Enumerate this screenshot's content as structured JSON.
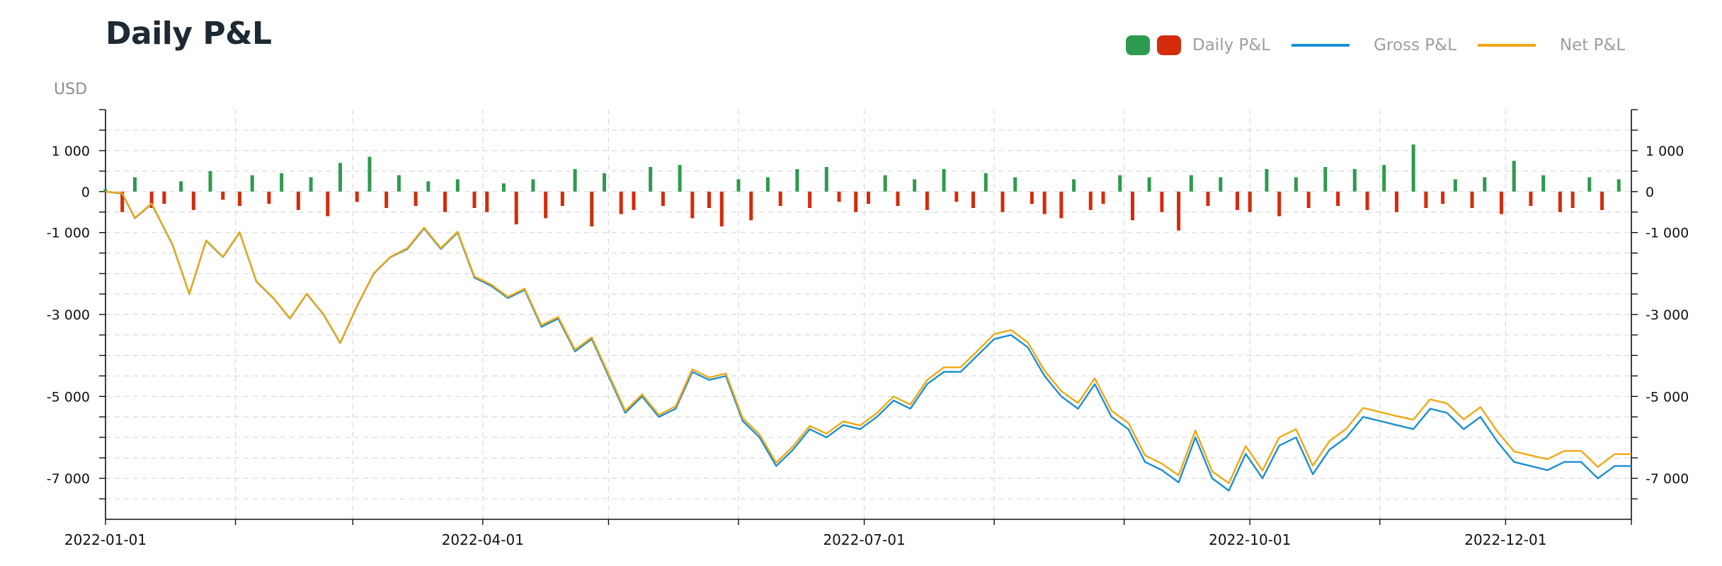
{
  "page": {
    "title": "Daily P&L"
  },
  "legend": [
    {
      "label": "Daily P&L",
      "colors": [
        "#2e9a4e",
        "#d42b0a"
      ]
    },
    {
      "label": "Gross P&L",
      "color": "#1a8fd1"
    },
    {
      "label": "Net P&L",
      "color": "#f0a813"
    }
  ],
  "chart_data": {
    "type": "bar+line",
    "title": "Daily P&L",
    "ylabel": "USD",
    "xlim": [
      "2022-01-01",
      "2022-12-31"
    ],
    "ylim": [
      -8000,
      2000
    ],
    "yticks": [
      1000,
      0,
      -1000,
      -3000,
      -5000,
      -7000
    ],
    "ytick_labels": [
      "1 000",
      "0",
      "-1 000",
      "-3 000",
      "-5 000",
      "-7 000"
    ],
    "xticks": [
      "2022-01-01",
      "2022-04-01",
      "2022-07-01",
      "2022-10-01",
      "2022-12-01"
    ],
    "grid": true,
    "legend_position": "top-right",
    "series": [
      {
        "name": "Daily P&L",
        "type": "bar",
        "positive_color": "#2e9a4e",
        "negative_color": "#d42b0a",
        "x": [
          "2022-01-01",
          "2022-01-05",
          "2022-01-08",
          "2022-01-12",
          "2022-01-15",
          "2022-01-19",
          "2022-01-22",
          "2022-01-26",
          "2022-01-29",
          "2022-02-02",
          "2022-02-05",
          "2022-02-09",
          "2022-02-12",
          "2022-02-16",
          "2022-02-19",
          "2022-02-23",
          "2022-02-26",
          "2022-03-02",
          "2022-03-05",
          "2022-03-09",
          "2022-03-12",
          "2022-03-16",
          "2022-03-19",
          "2022-03-23",
          "2022-03-26",
          "2022-03-30",
          "2022-04-02",
          "2022-04-06",
          "2022-04-09",
          "2022-04-13",
          "2022-04-16",
          "2022-04-20",
          "2022-04-23",
          "2022-04-27",
          "2022-04-30",
          "2022-05-04",
          "2022-05-07",
          "2022-05-11",
          "2022-05-14",
          "2022-05-18",
          "2022-05-21",
          "2022-05-25",
          "2022-05-28",
          "2022-06-01",
          "2022-06-04",
          "2022-06-08",
          "2022-06-11",
          "2022-06-15",
          "2022-06-18",
          "2022-06-22",
          "2022-06-25",
          "2022-06-29",
          "2022-07-02",
          "2022-07-06",
          "2022-07-09",
          "2022-07-13",
          "2022-07-16",
          "2022-07-20",
          "2022-07-23",
          "2022-07-27",
          "2022-07-30",
          "2022-08-03",
          "2022-08-06",
          "2022-08-10",
          "2022-08-13",
          "2022-08-17",
          "2022-08-20",
          "2022-08-24",
          "2022-08-27",
          "2022-08-31",
          "2022-09-03",
          "2022-09-07",
          "2022-09-10",
          "2022-09-14",
          "2022-09-17",
          "2022-09-21",
          "2022-09-24",
          "2022-09-28",
          "2022-10-01",
          "2022-10-05",
          "2022-10-08",
          "2022-10-12",
          "2022-10-15",
          "2022-10-19",
          "2022-10-22",
          "2022-10-26",
          "2022-10-29",
          "2022-11-02",
          "2022-11-05",
          "2022-11-09",
          "2022-11-12",
          "2022-11-16",
          "2022-11-19",
          "2022-11-23",
          "2022-11-26",
          "2022-11-30",
          "2022-12-03",
          "2022-12-07",
          "2022-12-10",
          "2022-12-14",
          "2022-12-17",
          "2022-12-21",
          "2022-12-24",
          "2022-12-28"
        ],
        "values": [
          60,
          -500,
          350,
          -400,
          -300,
          250,
          -450,
          500,
          -200,
          -350,
          400,
          -300,
          450,
          -450,
          350,
          -600,
          700,
          -250,
          850,
          -400,
          400,
          -350,
          250,
          -500,
          300,
          -400,
          -500,
          200,
          -800,
          300,
          -650,
          -350,
          550,
          -850,
          450,
          -550,
          -450,
          600,
          -350,
          650,
          -650,
          -400,
          -850,
          300,
          -700,
          350,
          -350,
          550,
          -400,
          600,
          -250,
          -500,
          -300,
          400,
          -350,
          300,
          -450,
          550,
          -250,
          -400,
          450,
          -500,
          350,
          -300,
          -550,
          -650,
          300,
          -450,
          -300,
          400,
          -700,
          350,
          -500,
          -950,
          400,
          -350,
          350,
          -450,
          -500,
          550,
          -600,
          350,
          -400,
          600,
          -350,
          550,
          -450,
          650,
          -500,
          1150,
          -400,
          -300,
          300,
          -400,
          350,
          -550,
          750,
          -350,
          400,
          -500,
          -400,
          350,
          -450,
          300
        ]
      },
      {
        "name": "Gross P&L",
        "type": "line",
        "color": "#1a8fd1",
        "x": [
          "2022-01-01",
          "2022-01-05",
          "2022-01-08",
          "2022-01-12",
          "2022-01-17",
          "2022-01-21",
          "2022-01-25",
          "2022-01-29",
          "2022-02-02",
          "2022-02-06",
          "2022-02-10",
          "2022-02-14",
          "2022-02-18",
          "2022-02-22",
          "2022-02-26",
          "2022-03-02",
          "2022-03-06",
          "2022-03-10",
          "2022-03-14",
          "2022-03-18",
          "2022-03-22",
          "2022-03-26",
          "2022-03-30",
          "2022-04-03",
          "2022-04-07",
          "2022-04-11",
          "2022-04-15",
          "2022-04-19",
          "2022-04-23",
          "2022-04-27",
          "2022-05-01",
          "2022-05-05",
          "2022-05-09",
          "2022-05-13",
          "2022-05-17",
          "2022-05-21",
          "2022-05-25",
          "2022-05-29",
          "2022-06-02",
          "2022-06-06",
          "2022-06-10",
          "2022-06-14",
          "2022-06-18",
          "2022-06-22",
          "2022-06-26",
          "2022-06-30",
          "2022-07-04",
          "2022-07-08",
          "2022-07-12",
          "2022-07-16",
          "2022-07-20",
          "2022-07-24",
          "2022-07-28",
          "2022-08-01",
          "2022-08-05",
          "2022-08-09",
          "2022-08-13",
          "2022-08-17",
          "2022-08-21",
          "2022-08-25",
          "2022-08-29",
          "2022-09-02",
          "2022-09-06",
          "2022-09-10",
          "2022-09-14",
          "2022-09-18",
          "2022-09-22",
          "2022-09-26",
          "2022-09-30",
          "2022-10-04",
          "2022-10-08",
          "2022-10-12",
          "2022-10-16",
          "2022-10-20",
          "2022-10-24",
          "2022-10-28",
          "2022-11-01",
          "2022-11-05",
          "2022-11-09",
          "2022-11-13",
          "2022-11-17",
          "2022-11-21",
          "2022-11-25",
          "2022-11-29",
          "2022-12-03",
          "2022-12-07",
          "2022-12-11",
          "2022-12-15",
          "2022-12-19",
          "2022-12-23",
          "2022-12-27",
          "2022-12-31"
        ],
        "values": [
          0,
          -50,
          -650,
          -300,
          -1300,
          -2500,
          -1200,
          -1600,
          -1000,
          -2200,
          -2600,
          -3100,
          -2500,
          -3000,
          -3700,
          -2800,
          -2000,
          -1600,
          -1400,
          -900,
          -1400,
          -1000,
          -2100,
          -2300,
          -2600,
          -2400,
          -3300,
          -3100,
          -3900,
          -3600,
          -4500,
          -5400,
          -5000,
          -5500,
          -5300,
          -4400,
          -4600,
          -4500,
          -5600,
          -6000,
          -6700,
          -6300,
          -5800,
          -6000,
          -5700,
          -5800,
          -5500,
          -5100,
          -5300,
          -4700,
          -4400,
          -4400,
          -4000,
          -3600,
          -3500,
          -3800,
          -4500,
          -5000,
          -5300,
          -4700,
          -5500,
          -5800,
          -6600,
          -6800,
          -7100,
          -6000,
          -7000,
          -7300,
          -6400,
          -7000,
          -6200,
          -6000,
          -6900,
          -6300,
          -6000,
          -5500,
          -5600,
          -5700,
          -5800,
          -5300,
          -5400,
          -5800,
          -5500,
          -6100,
          -6600,
          -6700,
          -6800,
          -6600,
          -6600,
          -7000,
          -6700,
          -6700
        ]
      },
      {
        "name": "Net P&L",
        "type": "line",
        "color": "#f0a813",
        "x": [
          "2022-01-01",
          "2022-01-05",
          "2022-01-08",
          "2022-01-12",
          "2022-01-17",
          "2022-01-21",
          "2022-01-25",
          "2022-01-29",
          "2022-02-02",
          "2022-02-06",
          "2022-02-10",
          "2022-02-14",
          "2022-02-18",
          "2022-02-22",
          "2022-02-26",
          "2022-03-02",
          "2022-03-06",
          "2022-03-10",
          "2022-03-14",
          "2022-03-18",
          "2022-03-22",
          "2022-03-26",
          "2022-03-30",
          "2022-04-03",
          "2022-04-07",
          "2022-04-11",
          "2022-04-15",
          "2022-04-19",
          "2022-04-23",
          "2022-04-27",
          "2022-05-01",
          "2022-05-05",
          "2022-05-09",
          "2022-05-13",
          "2022-05-17",
          "2022-05-21",
          "2022-05-25",
          "2022-05-29",
          "2022-06-02",
          "2022-06-06",
          "2022-06-10",
          "2022-06-14",
          "2022-06-18",
          "2022-06-22",
          "2022-06-26",
          "2022-06-30",
          "2022-07-04",
          "2022-07-08",
          "2022-07-12",
          "2022-07-16",
          "2022-07-20",
          "2022-07-24",
          "2022-07-28",
          "2022-08-01",
          "2022-08-05",
          "2022-08-09",
          "2022-08-13",
          "2022-08-17",
          "2022-08-21",
          "2022-08-25",
          "2022-08-29",
          "2022-09-02",
          "2022-09-06",
          "2022-09-10",
          "2022-09-14",
          "2022-09-18",
          "2022-09-22",
          "2022-09-26",
          "2022-09-30",
          "2022-10-04",
          "2022-10-08",
          "2022-10-12",
          "2022-10-16",
          "2022-10-20",
          "2022-10-24",
          "2022-10-28",
          "2022-11-01",
          "2022-11-05",
          "2022-11-09",
          "2022-11-13",
          "2022-11-17",
          "2022-11-21",
          "2022-11-25",
          "2022-11-29",
          "2022-12-03",
          "2022-12-07",
          "2022-12-11",
          "2022-12-15",
          "2022-12-19",
          "2022-12-23",
          "2022-12-27",
          "2022-12-31"
        ],
        "values": [
          0,
          -40,
          -640,
          -290,
          -1290,
          -2490,
          -1190,
          -1590,
          -990,
          -2190,
          -2590,
          -3090,
          -2490,
          -2990,
          -3690,
          -2790,
          -1990,
          -1590,
          -1380,
          -880,
          -1380,
          -980,
          -2070,
          -2270,
          -2570,
          -2370,
          -3260,
          -3060,
          -3860,
          -3560,
          -4450,
          -5350,
          -4950,
          -5450,
          -5240,
          -4340,
          -4540,
          -4440,
          -5530,
          -5930,
          -6620,
          -6220,
          -5720,
          -5910,
          -5610,
          -5710,
          -5410,
          -5000,
          -5200,
          -4600,
          -4290,
          -4290,
          -3890,
          -3480,
          -3380,
          -3680,
          -4370,
          -4870,
          -5160,
          -4560,
          -5350,
          -5650,
          -6440,
          -6640,
          -6930,
          -5830,
          -6830,
          -7120,
          -6210,
          -6810,
          -6000,
          -5800,
          -6690,
          -6090,
          -5790,
          -5280,
          -5380,
          -5480,
          -5570,
          -5070,
          -5170,
          -5560,
          -5260,
          -5850,
          -6340,
          -6440,
          -6530,
          -6330,
          -6330,
          -6720,
          -6410,
          -6410
        ]
      }
    ]
  }
}
